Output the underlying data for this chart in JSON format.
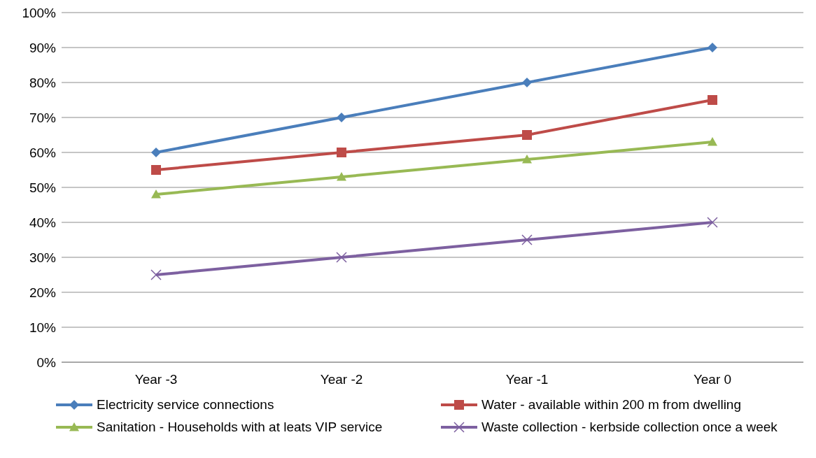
{
  "chart_data": {
    "type": "line",
    "categories": [
      "Year -3",
      "Year -2",
      "Year -1",
      "Year 0"
    ],
    "series": [
      {
        "name": "Electricity service connections",
        "color": "#4a7ebb",
        "marker": "diamond",
        "values": [
          60,
          70,
          80,
          90
        ]
      },
      {
        "name": "Water - available within 200 m from dwelling",
        "color": "#be4b48",
        "marker": "square",
        "values": [
          55,
          60,
          65,
          75
        ]
      },
      {
        "name": "Sanitation - Households with at leats VIP service",
        "color": "#98b954",
        "marker": "triangle",
        "values": [
          48,
          53,
          58,
          63
        ]
      },
      {
        "name": "Waste collection - kerbside collection once a week",
        "color": "#7d60a0",
        "marker": "cross",
        "values": [
          25,
          30,
          35,
          40
        ]
      }
    ],
    "ylim": [
      0,
      100
    ],
    "yticks": [
      {
        "value": 0,
        "label": "0%"
      },
      {
        "value": 10,
        "label": "10%"
      },
      {
        "value": 20,
        "label": "20%"
      },
      {
        "value": 30,
        "label": "30%"
      },
      {
        "value": 40,
        "label": "40%"
      },
      {
        "value": 50,
        "label": "50%"
      },
      {
        "value": 60,
        "label": "60%"
      },
      {
        "value": 70,
        "label": "70%"
      },
      {
        "value": 80,
        "label": "80%"
      },
      {
        "value": 90,
        "label": "90%"
      },
      {
        "value": 100,
        "label": "100%"
      }
    ],
    "grid": "y",
    "legend": "bottom"
  }
}
